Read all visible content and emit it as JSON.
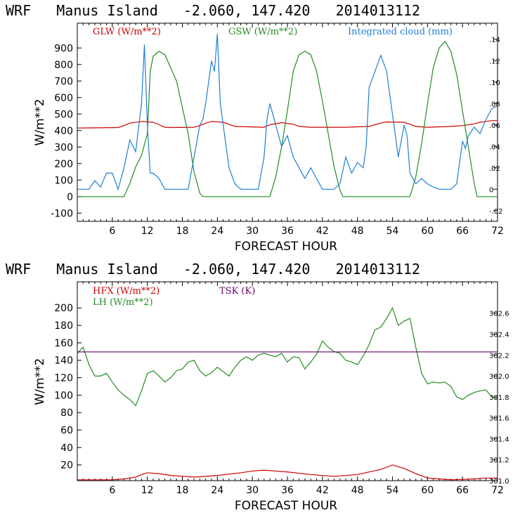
{
  "figures": [
    {
      "title": "WRF   Manus Island   -2.060, 147.420   2014013112"
    },
    {
      "title": "WRF   Manus Island   -2.060, 147.420   2014013112"
    }
  ],
  "chart_data": [
    {
      "type": "line",
      "title": "WRF   Manus Island   -2.060, 147.420   2014013112",
      "xlabel": "FORECAST HOUR",
      "ylabel": "W/m**2",
      "xlim": [
        0,
        72
      ],
      "ylim": [
        -150,
        1050
      ],
      "xticks": [
        6,
        12,
        18,
        24,
        30,
        36,
        42,
        48,
        54,
        60,
        66,
        72
      ],
      "yticks": [
        -100,
        0,
        100,
        200,
        300,
        400,
        500,
        600,
        700,
        800,
        900
      ],
      "y2lim": [
        -0.03,
        0.155
      ],
      "y2ticks": [
        -0.02,
        0,
        0.02,
        0.04,
        0.06,
        0.08,
        0.1,
        0.12,
        0.14
      ],
      "y2ticklabels": [
        "-.02",
        "0",
        ".02",
        ".04",
        ".06",
        ".08",
        ".10",
        ".12",
        ".14"
      ],
      "series": [
        {
          "name": "GLW (W/m**2)",
          "color": "#cc0000",
          "axis": "left",
          "x": [
            0,
            7,
            8,
            9,
            11,
            13,
            14,
            15,
            16,
            20,
            21,
            22,
            23,
            25,
            27,
            32,
            33,
            35,
            37,
            38,
            40,
            44,
            46,
            50,
            51,
            52,
            53,
            56,
            57,
            58,
            60,
            64,
            66,
            68,
            69,
            70,
            71,
            72
          ],
          "y": [
            415,
            418,
            430,
            445,
            455,
            450,
            435,
            420,
            418,
            420,
            430,
            445,
            455,
            450,
            425,
            420,
            435,
            448,
            438,
            425,
            420,
            420,
            420,
            425,
            435,
            445,
            452,
            450,
            438,
            425,
            420,
            425,
            430,
            440,
            450,
            455,
            460,
            460
          ]
        },
        {
          "name": "GSW (W/m**2)",
          "color": "#228b22",
          "axis": "left",
          "x": [
            0,
            8,
            9,
            10,
            11,
            12,
            12.5,
            13,
            14,
            15,
            17,
            19,
            20,
            21,
            21.5,
            22,
            33,
            34,
            35,
            36,
            37,
            38,
            39,
            40,
            41,
            42,
            44,
            45,
            45.5,
            57,
            58,
            59,
            60,
            61,
            62,
            63,
            64,
            65,
            66,
            67,
            68,
            68.5,
            69,
            72
          ],
          "y": [
            0,
            0,
            80,
            180,
            250,
            380,
            760,
            850,
            880,
            860,
            700,
            380,
            150,
            20,
            0,
            0,
            0,
            120,
            300,
            520,
            760,
            860,
            880,
            860,
            760,
            580,
            180,
            40,
            0,
            0,
            120,
            320,
            560,
            780,
            900,
            940,
            880,
            740,
            520,
            300,
            80,
            0,
            0,
            0
          ]
        },
        {
          "name": "Integrated cloud (mm)",
          "color": "#1f7fd6",
          "axis": "right",
          "x": [
            0,
            2,
            3,
            4,
            5,
            6,
            7,
            8,
            9,
            10,
            11,
            11.5,
            12,
            12.5,
            13,
            14,
            15,
            16,
            17,
            18,
            19,
            20,
            21,
            21.5,
            22,
            23,
            23.5,
            24,
            24.5,
            25,
            26,
            27,
            28,
            29,
            30,
            31,
            32,
            32.5,
            33,
            34,
            35,
            36,
            37,
            38,
            39,
            40,
            41,
            42,
            43,
            44,
            45,
            46,
            47,
            48,
            49,
            49.5,
            50,
            51,
            52,
            53,
            54,
            55,
            56,
            56.5,
            57,
            58,
            59,
            60,
            61,
            62,
            63,
            64,
            65,
            66,
            66.5,
            67,
            68,
            69,
            70,
            71,
            72
          ],
          "y": [
            0,
            0,
            0.008,
            0.002,
            0.015,
            0.015,
            0,
            0.02,
            0.046,
            0.035,
            0.08,
            0.135,
            0.06,
            0.015,
            0.015,
            0.01,
            0,
            0,
            0,
            0,
            0,
            0.03,
            0.06,
            0.065,
            0.08,
            0.12,
            0.11,
            0.145,
            0.08,
            0.06,
            0.02,
            0.005,
            0,
            0,
            0,
            0,
            0.03,
            0.065,
            0.08,
            0.06,
            0.04,
            0.05,
            0.03,
            0.02,
            0.01,
            0.02,
            0.01,
            0,
            0,
            0,
            0.005,
            0.03,
            0.015,
            0.025,
            0.02,
            0.04,
            0.095,
            0.11,
            0.125,
            0.11,
            0.07,
            0.03,
            0.06,
            0.05,
            0.015,
            0.005,
            0.01,
            0.005,
            0.002,
            0,
            0,
            0,
            0.005,
            0.045,
            0.038,
            0.05,
            0.058,
            0.052,
            0.065,
            0.075,
            0.078
          ]
        }
      ],
      "legend": [
        "GLW (W/m**2)",
        "GSW (W/m**2)",
        "Integrated cloud (mm)"
      ],
      "legend_position": "top",
      "grid": false
    },
    {
      "type": "line",
      "title": "WRF   Manus Island   -2.060, 147.420   2014013112",
      "xlabel": "FORECAST HOUR",
      "ylabel": "W/m**2",
      "xlim": [
        0,
        72
      ],
      "ylim": [
        2,
        230
      ],
      "xticks": [
        6,
        12,
        18,
        24,
        30,
        36,
        42,
        48,
        54,
        60,
        66,
        72
      ],
      "yticks": [
        20,
        40,
        60,
        80,
        100,
        120,
        140,
        160,
        180,
        200
      ],
      "y2lim": [
        301.0,
        302.9
      ],
      "y2ticks": [
        301.0,
        301.2,
        301.4,
        301.6,
        301.8,
        302.0,
        302.2,
        302.4,
        302.6
      ],
      "y2ticklabels": [
        "301.0",
        "301.2",
        "301.4",
        "301.6",
        "301.8",
        "302.0",
        "302.2",
        "302.4",
        "302.6"
      ],
      "series": [
        {
          "name": "HFX (W/m**2)",
          "color": "#cc0000",
          "axis": "left",
          "x": [
            0,
            6,
            8,
            10,
            11,
            12,
            14,
            16,
            18,
            20,
            24,
            28,
            30,
            32,
            34,
            36,
            40,
            44,
            48,
            52,
            54,
            56,
            58,
            60,
            62,
            64,
            68,
            70,
            72
          ],
          "y": [
            3,
            3,
            4,
            6,
            9,
            11,
            10,
            8,
            7,
            6,
            8,
            11,
            13,
            14,
            13,
            12,
            9,
            7,
            9,
            15,
            20,
            16,
            10,
            5,
            4,
            3,
            4,
            5,
            5
          ]
        },
        {
          "name": "LH (W/m**2)",
          "color": "#228b22",
          "axis": "left",
          "x": [
            0,
            1,
            2,
            3,
            4,
            5,
            6,
            7,
            8,
            9,
            10,
            11,
            12,
            13,
            14,
            15,
            16,
            17,
            18,
            19,
            20,
            21,
            22,
            23,
            24,
            25,
            26,
            27,
            28,
            29,
            30,
            31,
            32,
            33,
            34,
            35,
            36,
            37,
            38,
            39,
            40,
            41,
            42,
            43,
            44,
            45,
            46,
            47,
            48,
            49,
            50,
            51,
            52,
            53,
            54,
            55,
            56,
            57,
            58,
            59,
            60,
            61,
            62,
            63,
            64,
            65,
            66,
            67,
            68,
            69,
            70,
            71,
            72
          ],
          "y": [
            148,
            155,
            135,
            122,
            122,
            125,
            115,
            106,
            100,
            95,
            88,
            105,
            125,
            128,
            122,
            115,
            120,
            128,
            130,
            138,
            140,
            128,
            122,
            126,
            132,
            127,
            122,
            132,
            140,
            144,
            140,
            146,
            148,
            146,
            144,
            148,
            138,
            144,
            143,
            130,
            138,
            147,
            162,
            155,
            150,
            148,
            140,
            138,
            135,
            145,
            158,
            175,
            178,
            188,
            200,
            180,
            185,
            188,
            155,
            125,
            113,
            115,
            114,
            115,
            110,
            98,
            95,
            100,
            103,
            105,
            106,
            98,
            96
          ]
        },
        {
          "name": "TSK (K)",
          "color": "#660066",
          "axis": "right",
          "x": [
            0,
            72
          ],
          "y": [
            302.23,
            302.23
          ]
        }
      ],
      "legend": [
        "HFX (W/m**2)",
        "LH (W/m**2)",
        "TSK (K)"
      ],
      "legend_position": "top-left",
      "grid": false
    }
  ]
}
